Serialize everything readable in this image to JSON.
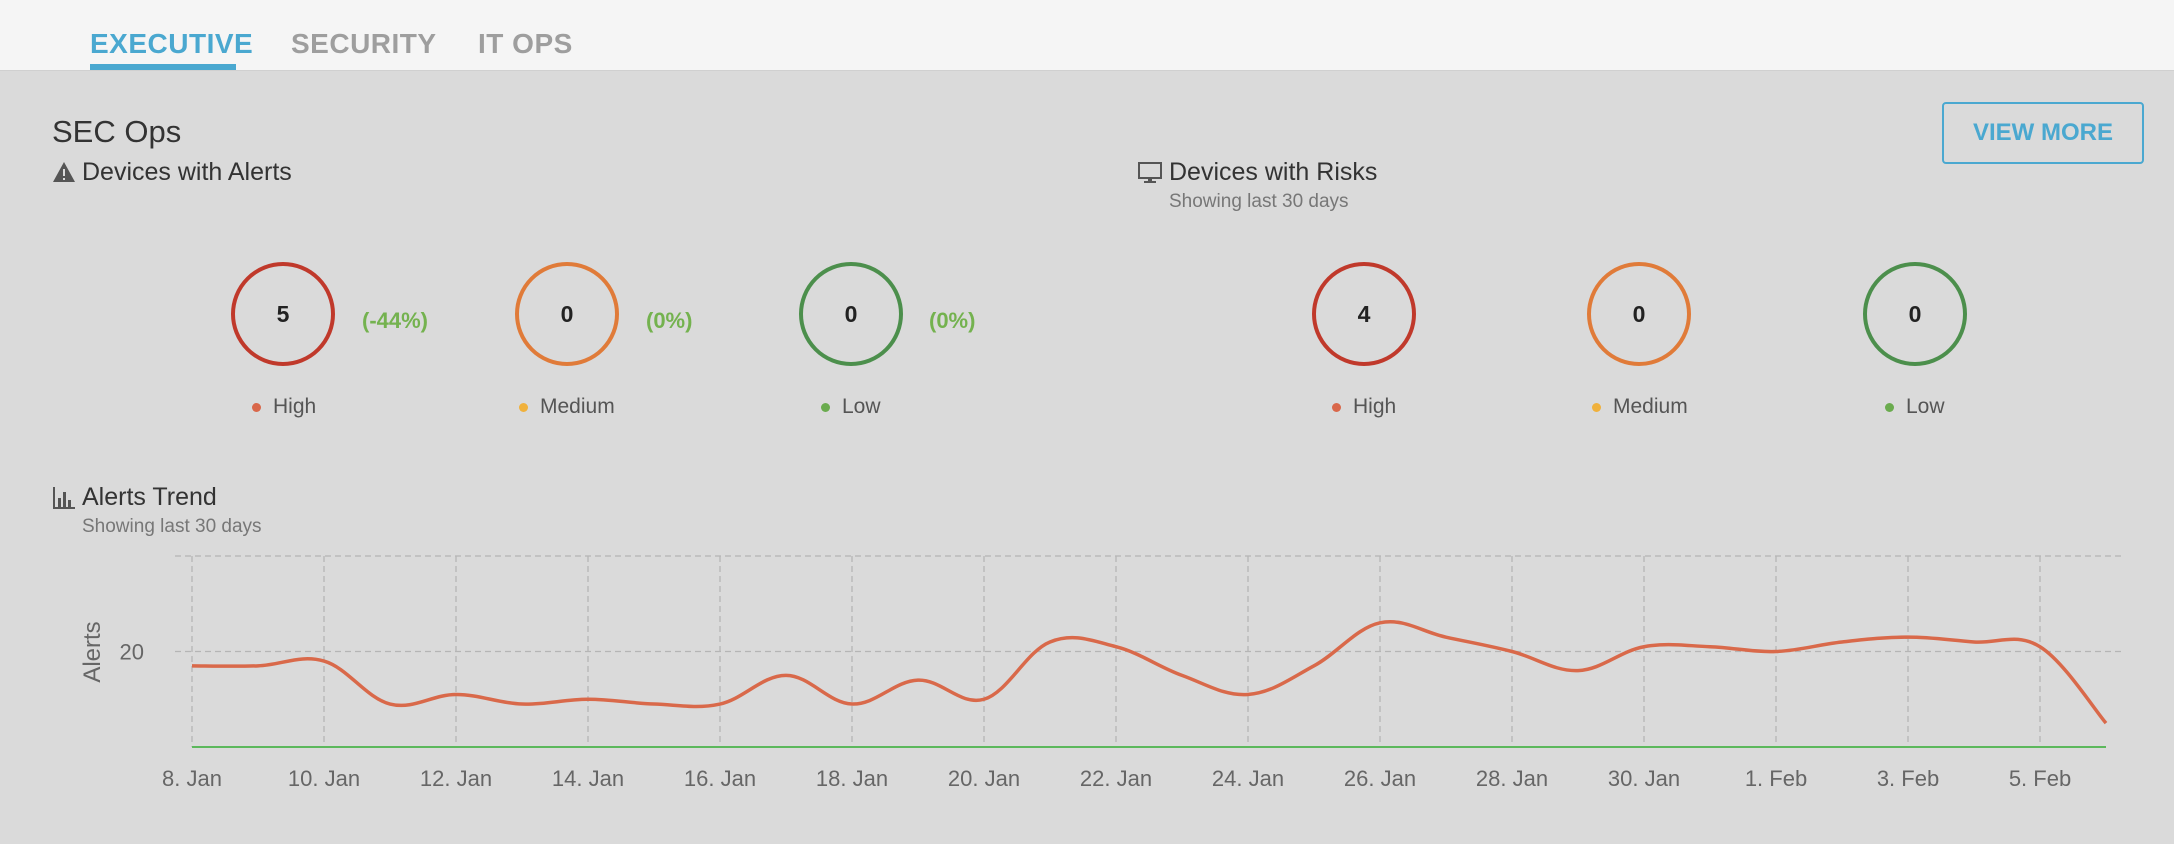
{
  "tabs": [
    {
      "label": "EXECUTIVE",
      "active": true
    },
    {
      "label": "SECURITY",
      "active": false
    },
    {
      "label": "IT OPS",
      "active": false
    }
  ],
  "section": {
    "title": "SEC Ops",
    "view_more": "VIEW MORE"
  },
  "alerts_panel": {
    "title": "Devices with Alerts",
    "icon": "warning-icon",
    "items": [
      {
        "value": "5",
        "delta": "(-44%)",
        "label": "High"
      },
      {
        "value": "0",
        "delta": "(0%)",
        "label": "Medium"
      },
      {
        "value": "0",
        "delta": "(0%)",
        "label": "Low"
      }
    ]
  },
  "risks_panel": {
    "title": "Devices with Risks",
    "subtitle": "Showing last 30 days",
    "icon": "monitor-icon",
    "items": [
      {
        "value": "4",
        "label": "High"
      },
      {
        "value": "0",
        "label": "Medium"
      },
      {
        "value": "0",
        "label": "Low"
      }
    ]
  },
  "trend": {
    "title": "Alerts Trend",
    "subtitle": "Showing last 30 days",
    "icon": "bar-chart-icon"
  },
  "colors": {
    "accent": "#4aa8d0",
    "high": "#d9674a",
    "medium": "#f0b13c",
    "low": "#6aab4e",
    "line": "#d9694a",
    "baseline": "#5cb85c"
  },
  "chart_data": {
    "type": "line",
    "title": "Alerts Trend",
    "ylabel": "Alerts",
    "yticks": [
      20
    ],
    "ylim": [
      0,
      40
    ],
    "xticks": [
      "8. Jan",
      "10. Jan",
      "12. Jan",
      "14. Jan",
      "16. Jan",
      "18. Jan",
      "20. Jan",
      "22. Jan",
      "24. Jan",
      "26. Jan",
      "28. Jan",
      "30. Jan",
      "1. Feb",
      "3. Feb",
      "5. Feb"
    ],
    "grid": true,
    "series": [
      {
        "x": [
          "8. Jan",
          "9. Jan",
          "10. Jan",
          "11. Jan",
          "12. Jan",
          "13. Jan",
          "14. Jan",
          "15. Jan",
          "16. Jan",
          "17. Jan",
          "18. Jan",
          "19. Jan",
          "20. Jan",
          "21. Jan",
          "22. Jan",
          "23. Jan",
          "24. Jan",
          "25. Jan",
          "26. Jan",
          "27. Jan",
          "28. Jan",
          "29. Jan",
          "30. Jan",
          "31. Jan",
          "1. Feb",
          "2. Feb",
          "3. Feb",
          "4. Feb",
          "5. Feb",
          "6. Feb"
        ],
        "values": [
          17,
          17,
          18,
          9,
          11,
          9,
          10,
          9,
          9,
          15,
          9,
          14,
          10,
          22,
          21,
          15,
          11,
          17,
          26,
          23,
          20,
          16,
          21,
          21,
          20,
          22,
          23,
          22,
          21,
          5
        ]
      },
      {
        "values": [
          0,
          0,
          0,
          0,
          0,
          0,
          0,
          0,
          0,
          0,
          0,
          0,
          0,
          0,
          0,
          0,
          0,
          0,
          0,
          0,
          0,
          0,
          0,
          0,
          0,
          0,
          0,
          0,
          0,
          0
        ]
      }
    ]
  }
}
